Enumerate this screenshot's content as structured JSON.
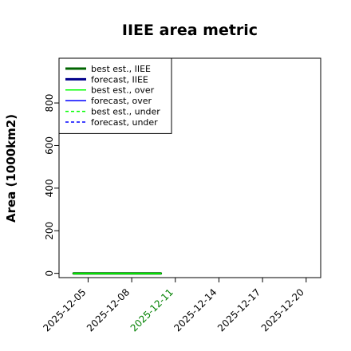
{
  "chart_data": {
    "type": "line",
    "title": "IIEE area metric",
    "xlabel": "",
    "ylabel": "Area (1000km2)",
    "ylim": [
      -20,
      1010
    ],
    "xlim": [
      "2025-12-03",
      "2025-12-21"
    ],
    "x_ticks": [
      "2025-12-05",
      "2025-12-08",
      "2025-12-11",
      "2025-12-14",
      "2025-12-17",
      "2025-12-20"
    ],
    "x_tick_colors": [
      "#000000",
      "#000000",
      "#008000",
      "#000000",
      "#000000",
      "#000000"
    ],
    "y_ticks": [
      0,
      200,
      400,
      600,
      800
    ],
    "grid": false,
    "legend_position": "top-left",
    "legend": [
      {
        "label": "best est., IIEE",
        "color": "#006400",
        "style": "solid",
        "width": 3
      },
      {
        "label": "forecast, IIEE",
        "color": "#00008b",
        "style": "solid",
        "width": 3
      },
      {
        "label": "best est., over",
        "color": "#00ff00",
        "style": "solid",
        "width": 1.5
      },
      {
        "label": "forecast, over",
        "color": "#0000ff",
        "style": "solid",
        "width": 1.5
      },
      {
        "label": "best est., under",
        "color": "#00ff00",
        "style": "dashed",
        "width": 1.5
      },
      {
        "label": "forecast, under",
        "color": "#0000ff",
        "style": "dashed",
        "width": 1.5
      }
    ],
    "series": [
      {
        "name": "best est., IIEE",
        "color": "#006400",
        "width": 3,
        "style": "solid",
        "x": [
          "2025-12-04",
          "2025-12-05",
          "2025-12-06",
          "2025-12-07",
          "2025-12-08",
          "2025-12-09",
          "2025-12-10"
        ],
        "y": [
          0,
          0,
          0,
          0,
          0,
          0,
          0
        ]
      },
      {
        "name": "best est., over",
        "color": "#00ff00",
        "width": 1.5,
        "style": "solid",
        "x": [
          "2025-12-04",
          "2025-12-05",
          "2025-12-06",
          "2025-12-07",
          "2025-12-08",
          "2025-12-09",
          "2025-12-10"
        ],
        "y": [
          0,
          0,
          0,
          0,
          0,
          0,
          0
        ]
      },
      {
        "name": "best est., under",
        "color": "#00ff00",
        "width": 1.5,
        "style": "dashed",
        "x": [
          "2025-12-04",
          "2025-12-05",
          "2025-12-06",
          "2025-12-07",
          "2025-12-08",
          "2025-12-09",
          "2025-12-10"
        ],
        "y": [
          0,
          0,
          0,
          0,
          0,
          0,
          0
        ]
      }
    ]
  }
}
